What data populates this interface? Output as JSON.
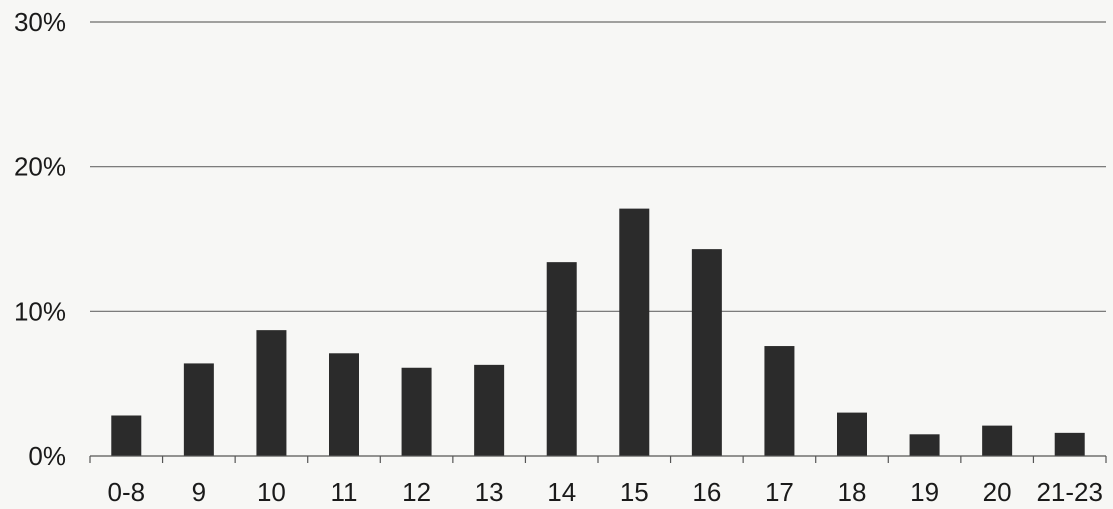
{
  "chart_data": {
    "type": "bar",
    "title": "",
    "xlabel": "",
    "ylabel": "",
    "categories": [
      "0-8",
      "9",
      "10",
      "11",
      "12",
      "13",
      "14",
      "15",
      "16",
      "17",
      "18",
      "19",
      "20",
      "21-23"
    ],
    "values": [
      2.8,
      6.4,
      8.7,
      7.1,
      6.1,
      6.3,
      13.4,
      17.1,
      14.3,
      7.6,
      3.0,
      1.5,
      2.1,
      1.6
    ],
    "ylim": [
      0,
      30
    ],
    "yticks": [
      0,
      10,
      20,
      30
    ],
    "ytick_labels": [
      "0%",
      "10%",
      "20%",
      "30%"
    ],
    "grid": true,
    "legend": "none",
    "colors": {
      "bar": "#2b2b2b",
      "grid": "#6b6b6b",
      "background": "#f7f7f5"
    }
  }
}
